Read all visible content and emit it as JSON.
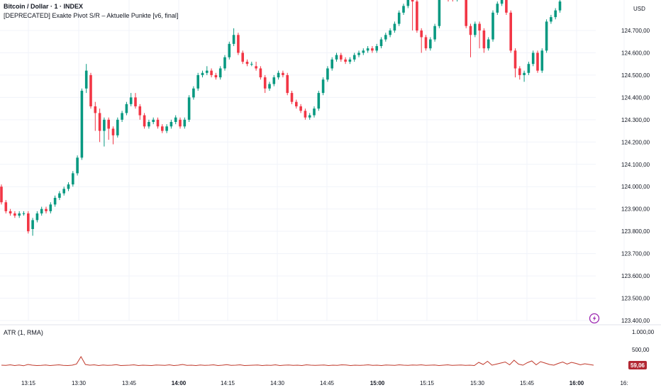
{
  "header": {
    "title": "Bitcoin / Dollar · 1 · INDEX",
    "indicator": "[DEPRECATED] Exakte Pivot S/R – Aktuelle Punkte [v6, final]"
  },
  "price_axis": {
    "currency": "USD"
  },
  "colors": {
    "up": "#089981",
    "down": "#f23645",
    "atr_line": "#c0392b",
    "atr_badge": "#b22833",
    "grid": "#f0f3fa",
    "text": "#131722"
  },
  "icons": {
    "alert": "lightning-icon"
  },
  "chart_data": [
    {
      "type": "candlestick",
      "yticks": [
        "124.700,00",
        "124.600,00",
        "124.500,00",
        "124.400,00",
        "124.300,00",
        "124.200,00",
        "124.100,00",
        "124.000,00",
        "123.900,00",
        "123.800,00",
        "123.700,00",
        "123.600,00",
        "123.500,00",
        "123.400,00"
      ],
      "xticks": [
        "13:15",
        "13:30",
        "13:45",
        "14:00",
        "14:15",
        "14:30",
        "14:45",
        "15:00",
        "15:15",
        "15:30",
        "15:45",
        "16:00",
        "16:"
      ],
      "ylim": [
        123380,
        124830
      ],
      "candles": [
        [
          124000,
          123930,
          124010,
          123920
        ],
        [
          123930,
          123890,
          123940,
          123880
        ],
        [
          123890,
          123880,
          123900,
          123870
        ],
        [
          123880,
          123870,
          123890,
          123860
        ],
        [
          123870,
          123880,
          123890,
          123860
        ],
        [
          123880,
          123880,
          123890,
          123870
        ],
        [
          123880,
          123800,
          123890,
          123790
        ],
        [
          123810,
          123850,
          123860,
          123780
        ],
        [
          123850,
          123880,
          123890,
          123840
        ],
        [
          123880,
          123900,
          123910,
          123870
        ],
        [
          123900,
          123890,
          123910,
          123880
        ],
        [
          123890,
          123920,
          123930,
          123880
        ],
        [
          123920,
          123950,
          123960,
          123910
        ],
        [
          123950,
          123970,
          123980,
          123940
        ],
        [
          123970,
          123990,
          124000,
          123960
        ],
        [
          123990,
          124010,
          124020,
          123980
        ],
        [
          124010,
          124060,
          124070,
          124000
        ],
        [
          124060,
          124130,
          124140,
          124050
        ],
        [
          124130,
          124430,
          124440,
          124120
        ],
        [
          124440,
          124520,
          124550,
          124420
        ],
        [
          124500,
          124360,
          124510,
          124350
        ],
        [
          124360,
          124330,
          124380,
          124250
        ],
        [
          124330,
          124250,
          124350,
          124200
        ],
        [
          124250,
          124300,
          124310,
          124180
        ],
        [
          124300,
          124260,
          124310,
          124210
        ],
        [
          124260,
          124230,
          124270,
          124190
        ],
        [
          124230,
          124300,
          124310,
          124220
        ],
        [
          124300,
          124330,
          124340,
          124290
        ],
        [
          124330,
          124370,
          124380,
          124320
        ],
        [
          124370,
          124400,
          124420,
          124360
        ],
        [
          124400,
          124360,
          124420,
          124350
        ],
        [
          124360,
          124320,
          124370,
          124300
        ],
        [
          124320,
          124270,
          124330,
          124260
        ],
        [
          124270,
          124290,
          124300,
          124260
        ],
        [
          124290,
          124300,
          124310,
          124280
        ],
        [
          124300,
          124270,
          124310,
          124260
        ],
        [
          124270,
          124250,
          124280,
          124240
        ],
        [
          124250,
          124270,
          124280,
          124240
        ],
        [
          124270,
          124290,
          124300,
          124260
        ],
        [
          124290,
          124310,
          124320,
          124280
        ],
        [
          124300,
          124270,
          124310,
          124260
        ],
        [
          124270,
          124300,
          124310,
          124260
        ],
        [
          124300,
          124400,
          124410,
          124290
        ],
        [
          124400,
          124440,
          124450,
          124390
        ],
        [
          124440,
          124500,
          124510,
          124430
        ],
        [
          124500,
          124510,
          124520,
          124490
        ],
        [
          124510,
          124520,
          124540,
          124500
        ],
        [
          124520,
          124500,
          124530,
          124490
        ],
        [
          124500,
          124490,
          124510,
          124480
        ],
        [
          124490,
          124530,
          124540,
          124480
        ],
        [
          124530,
          124580,
          124590,
          124520
        ],
        [
          124580,
          124640,
          124650,
          124570
        ],
        [
          124640,
          124680,
          124710,
          124630
        ],
        [
          124680,
          124600,
          124690,
          124590
        ],
        [
          124600,
          124560,
          124610,
          124550
        ],
        [
          124560,
          124550,
          124570,
          124540
        ],
        [
          124550,
          124550,
          124560,
          124540
        ],
        [
          124540,
          124530,
          124560,
          124520
        ],
        [
          124530,
          124490,
          124540,
          124480
        ],
        [
          124490,
          124440,
          124500,
          124420
        ],
        [
          124440,
          124460,
          124470,
          124430
        ],
        [
          124460,
          124490,
          124500,
          124450
        ],
        [
          124490,
          124510,
          124520,
          124480
        ],
        [
          124510,
          124500,
          124520,
          124490
        ],
        [
          124500,
          124420,
          124510,
          124410
        ],
        [
          124420,
          124380,
          124430,
          124370
        ],
        [
          124380,
          124360,
          124390,
          124350
        ],
        [
          124360,
          124340,
          124370,
          124330
        ],
        [
          124340,
          124310,
          124350,
          124300
        ],
        [
          124310,
          124320,
          124330,
          124300
        ],
        [
          124320,
          124350,
          124360,
          124310
        ],
        [
          124350,
          124420,
          124430,
          124340
        ],
        [
          124420,
          124480,
          124490,
          124410
        ],
        [
          124480,
          124530,
          124540,
          124470
        ],
        [
          124530,
          124570,
          124580,
          124520
        ],
        [
          124570,
          124590,
          124600,
          124560
        ],
        [
          124590,
          124570,
          124600,
          124560
        ],
        [
          124570,
          124560,
          124580,
          124550
        ],
        [
          124560,
          124570,
          124580,
          124550
        ],
        [
          124570,
          124590,
          124600,
          124560
        ],
        [
          124590,
          124600,
          124610,
          124580
        ],
        [
          124600,
          124610,
          124620,
          124590
        ],
        [
          124610,
          124620,
          124630,
          124600
        ],
        [
          124620,
          124610,
          124630,
          124600
        ],
        [
          124610,
          124630,
          124640,
          124600
        ],
        [
          124630,
          124660,
          124670,
          124620
        ],
        [
          124660,
          124680,
          124690,
          124650
        ],
        [
          124680,
          124700,
          124710,
          124670
        ],
        [
          124700,
          124730,
          124740,
          124690
        ],
        [
          124730,
          124780,
          124790,
          124720
        ],
        [
          124780,
          124810,
          124820,
          124770
        ],
        [
          124810,
          124840,
          124850,
          124800
        ],
        [
          124840,
          124830,
          124850,
          124700
        ],
        [
          124830,
          124700,
          124840,
          124690
        ],
        [
          124700,
          124670,
          124710,
          124600
        ],
        [
          124670,
          124620,
          124680,
          124610
        ],
        [
          124620,
          124660,
          124670,
          124610
        ],
        [
          124660,
          124720,
          124730,
          124650
        ],
        [
          124720,
          124850,
          124860,
          124710
        ],
        [
          124850,
          124860,
          124870,
          124840
        ],
        [
          124860,
          124850,
          124870,
          124830
        ],
        [
          124850,
          124840,
          124860,
          124830
        ],
        [
          124840,
          124850,
          124860,
          124830
        ],
        [
          124850,
          124860,
          124870,
          124840
        ],
        [
          124860,
          124720,
          124870,
          124710
        ],
        [
          124720,
          124680,
          124730,
          124580
        ],
        [
          124680,
          124730,
          124740,
          124670
        ],
        [
          124730,
          124700,
          124740,
          124620
        ],
        [
          124700,
          124620,
          124710,
          124600
        ],
        [
          124620,
          124660,
          124670,
          124610
        ],
        [
          124660,
          124780,
          124790,
          124650
        ],
        [
          124780,
          124820,
          124830,
          124770
        ],
        [
          124820,
          124850,
          124860,
          124810
        ],
        [
          124850,
          124780,
          124860,
          124770
        ],
        [
          124780,
          124610,
          124790,
          124600
        ],
        [
          124610,
          124530,
          124620,
          124490
        ],
        [
          124530,
          124500,
          124540,
          124480
        ],
        [
          124500,
          124510,
          124520,
          124470
        ],
        [
          124510,
          124550,
          124560,
          124500
        ],
        [
          124550,
          124600,
          124610,
          124540
        ],
        [
          124600,
          124520,
          124610,
          124510
        ],
        [
          124520,
          124610,
          124620,
          124510
        ],
        [
          124610,
          124740,
          124750,
          124600
        ],
        [
          124740,
          124760,
          124770,
          124730
        ],
        [
          124760,
          124790,
          124800,
          124750
        ],
        [
          124790,
          124830,
          124840,
          124780
        ]
      ]
    },
    {
      "type": "line",
      "label": "ATR (1, RMA)",
      "yticks": [
        "1.000,00",
        "500,00"
      ],
      "ylim": [
        0,
        1000
      ],
      "last_value": "59,06",
      "values": [
        60,
        55,
        70,
        50,
        65,
        45,
        80,
        60,
        50,
        55,
        65,
        50,
        60,
        70,
        55,
        50,
        60,
        95,
        300,
        80,
        60,
        70,
        50,
        65,
        55,
        60,
        75,
        50,
        55,
        60,
        70,
        50,
        60,
        55,
        50,
        65,
        60,
        55,
        70,
        50,
        60,
        80,
        55,
        60,
        50,
        65,
        55,
        60,
        70,
        50,
        60,
        75,
        55,
        60,
        70,
        50,
        55,
        60,
        65,
        50,
        60,
        55,
        70,
        50,
        60,
        65,
        55,
        60,
        50,
        70,
        60,
        55,
        60,
        65,
        50,
        60,
        55,
        70,
        65,
        50,
        60,
        55,
        60,
        70,
        55,
        60,
        50,
        65,
        60,
        55,
        70,
        60,
        55,
        65,
        60,
        70,
        55,
        60,
        65,
        50,
        60,
        70,
        55,
        60,
        65,
        55,
        60,
        50,
        140,
        80,
        170,
        60,
        90,
        120,
        150,
        70,
        200,
        90,
        60,
        130,
        180,
        70,
        160,
        120,
        80,
        60,
        110,
        150,
        90,
        140,
        110,
        70,
        100,
        80,
        60
      ]
    }
  ]
}
